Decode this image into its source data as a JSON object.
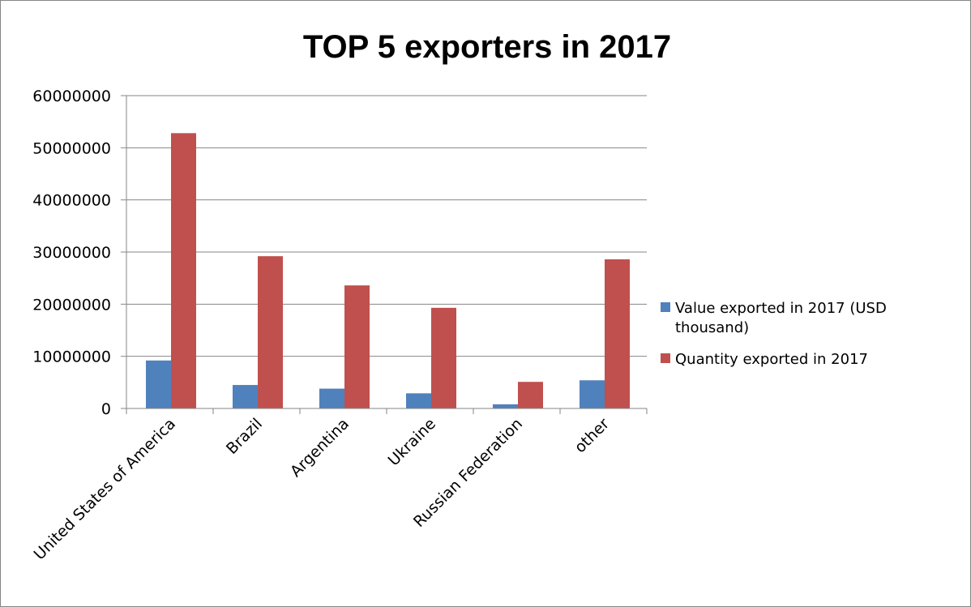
{
  "chart_data": {
    "type": "bar",
    "title": "TOP 5 exporters in 2017",
    "xlabel": "",
    "ylabel": "",
    "categories": [
      "United States of America",
      "Brazil",
      "Argentina",
      "Ukraine",
      "Russian Federation",
      "other"
    ],
    "series": [
      {
        "name": "Value exported in 2017 (USD thousand)",
        "legend_lines": [
          "Value exported in 2017 (USD",
          "thousand)"
        ],
        "color": "#4F81BD",
        "values": [
          9200000,
          4500000,
          3800000,
          2900000,
          800000,
          5400000
        ]
      },
      {
        "name": "Quantity exported in 2017",
        "legend_lines": [
          "Quantity exported in 2017"
        ],
        "color": "#C0504D",
        "values": [
          52800000,
          29200000,
          23600000,
          19300000,
          5100000,
          28600000
        ]
      }
    ],
    "ylim": [
      0,
      60000000
    ],
    "yticks": [
      0,
      10000000,
      20000000,
      30000000,
      40000000,
      50000000,
      60000000
    ],
    "ytick_labels": [
      "0",
      "10000000",
      "20000000",
      "30000000",
      "40000000",
      "50000000",
      "60000000"
    ],
    "grid": true,
    "gridline_color": "#868686",
    "legend_position": "right"
  }
}
